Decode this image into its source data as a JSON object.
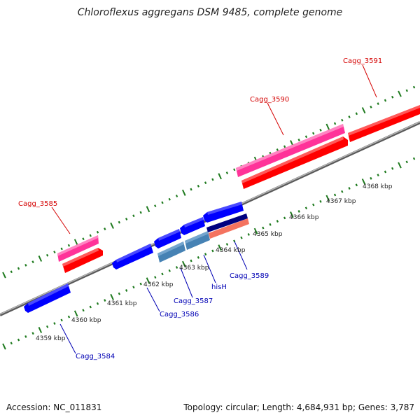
{
  "title": "Chloroflexus aggregans DSM 9485, complete genome",
  "footer": {
    "accession": "Accession: NC_011831",
    "summary": "Topology: circular; Length: 4,684,931 bp; Genes: 3,787"
  },
  "colors": {
    "backbone": "#8a8a8a",
    "tick": "#1e7a1e",
    "forward_label": "#d40000",
    "reverse_label": "#0000b4",
    "cds_forward": "#ff0000",
    "gene_forward": "#ff3399",
    "cds_reverse": "#0000ff",
    "gene_reverse": "#4682b4",
    "dark_reverse": "#000080",
    "salmon": "#f4735f"
  },
  "scale_labels": [
    "4359 kbp",
    "4360 kbp",
    "4361 kbp",
    "4362 kbp",
    "4363 kbp",
    "4364 kbp",
    "4365 kbp",
    "4366 kbp",
    "4367 kbp",
    "4368 kbp"
  ],
  "genes": [
    {
      "name": "Cagg_3584",
      "strand": "reverse"
    },
    {
      "name": "Cagg_3585",
      "strand": "forward"
    },
    {
      "name": "Cagg_3586",
      "strand": "reverse"
    },
    {
      "name": "Cagg_3587",
      "strand": "reverse"
    },
    {
      "name": "hisH",
      "strand": "reverse"
    },
    {
      "name": "Cagg_3589",
      "strand": "reverse"
    },
    {
      "name": "Cagg_3590",
      "strand": "forward"
    },
    {
      "name": "Cagg_3591",
      "strand": "forward"
    }
  ]
}
